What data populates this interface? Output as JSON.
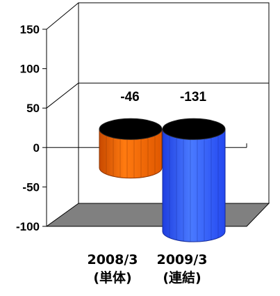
{
  "chart_data": {
    "type": "bar",
    "style": "3d-cylinder",
    "categories": [
      {
        "line1": "2008/3",
        "line2": "(単体)"
      },
      {
        "line1": "2009/3",
        "line2": "(連結)"
      }
    ],
    "values": [
      -46,
      -131
    ],
    "data_labels": [
      "-46",
      "-131"
    ],
    "colors": [
      "#ff6600",
      "#3366ff"
    ],
    "ylim": [
      -100,
      150
    ],
    "yticks": [
      "150",
      "100",
      "50",
      "0",
      "-50",
      "-100"
    ],
    "ytick_values": [
      150,
      100,
      50,
      0,
      -50,
      -100
    ],
    "gridlines": [
      50
    ],
    "title": "",
    "xlabel": "",
    "ylabel": ""
  }
}
